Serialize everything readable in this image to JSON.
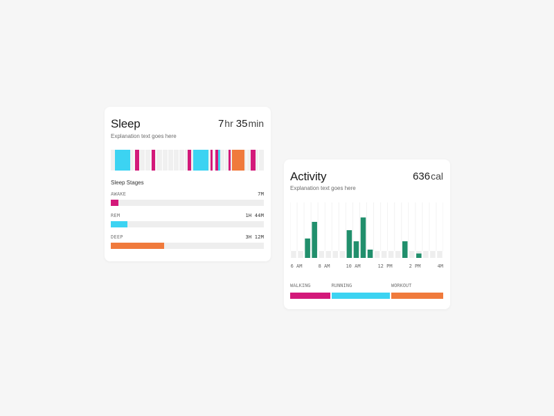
{
  "sleep": {
    "title": "Sleep",
    "subtitle": "Explanation text goes here",
    "duration": {
      "hours": "7",
      "hours_unit": "hr",
      "minutes": "35",
      "minutes_unit": "min"
    },
    "timeline": {
      "grid_lines": 27,
      "segments": [
        {
          "stage": "rem",
          "start": 0.027,
          "end": 0.127
        },
        {
          "stage": "awake",
          "start": 0.16,
          "end": 0.185
        },
        {
          "stage": "awake",
          "start": 0.265,
          "end": 0.29
        },
        {
          "stage": "awake",
          "start": 0.5,
          "end": 0.525
        },
        {
          "stage": "rem",
          "start": 0.54,
          "end": 0.64
        },
        {
          "stage": "awake",
          "start": 0.65,
          "end": 0.665
        },
        {
          "stage": "awake",
          "start": 0.685,
          "end": 0.7
        },
        {
          "stage": "rem",
          "start": 0.7,
          "end": 0.715
        },
        {
          "stage": "awake",
          "start": 0.77,
          "end": 0.785
        },
        {
          "stage": "deep",
          "start": 0.79,
          "end": 0.875
        },
        {
          "stage": "awake",
          "start": 0.915,
          "end": 0.945
        }
      ]
    },
    "stages_label": "Sleep Stages",
    "stages": [
      {
        "name": "AWAKE",
        "duration": "7M",
        "fraction": 0.05,
        "color": "#d3197a"
      },
      {
        "name": "REM",
        "duration": "1H 44M",
        "fraction": 0.11,
        "color": "#3cd3f2"
      },
      {
        "name": "DEEP",
        "duration": "3H 12M",
        "fraction": 0.35,
        "color": "#f07a3c"
      }
    ],
    "colors": {
      "awake": "#d3197a",
      "rem": "#3cd3f2",
      "deep": "#f07a3c"
    }
  },
  "activity": {
    "title": "Activity",
    "subtitle": "Explanation text goes here",
    "value": "636",
    "unit": "cal",
    "x_ticks": [
      "6 AM",
      "8 AM",
      "10 AM",
      "12 PM",
      "2 PM",
      "4M"
    ],
    "legend": [
      {
        "label": "WALKING",
        "color": "#d3197a",
        "fraction": 0.27
      },
      {
        "label": "RUNNING",
        "color": "#3cd3f2",
        "fraction": 0.39
      },
      {
        "label": "WORKOUT",
        "color": "#f07a3c",
        "fraction": 0.34
      }
    ]
  },
  "chart_data": {
    "type": "bar",
    "title": "",
    "xlabel": "",
    "ylabel": "",
    "x_ticks": [
      "6 AM",
      "8 AM",
      "10 AM",
      "12 PM",
      "2 PM",
      "4M"
    ],
    "bar_color": "#218f6c",
    "baseline_color": "#eeeeee",
    "ylim": [
      0,
      10
    ],
    "values": [
      0,
      0,
      3.5,
      6.5,
      0,
      0,
      0,
      0,
      5,
      3,
      7.3,
      1.5,
      0,
      0,
      0,
      0,
      3,
      0,
      0.8,
      0,
      0,
      0
    ]
  }
}
